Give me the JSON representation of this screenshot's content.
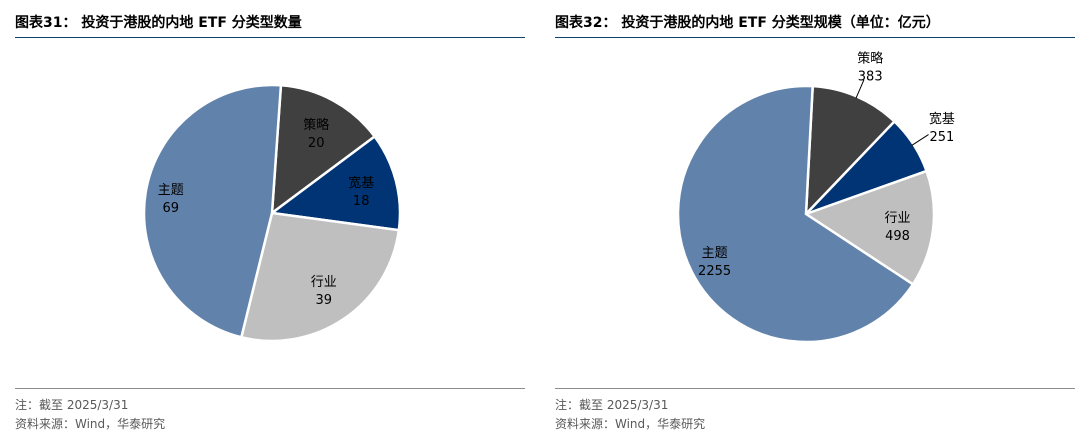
{
  "chart_data": [
    {
      "type": "pie",
      "title": "图表31： 投资于港股的内地 ETF 分类型数量",
      "note": "注：截至 2025/3/31",
      "source": "资料来源：Wind，华泰研究",
      "slices": [
        {
          "label": "策略",
          "value": 20,
          "value_text": "20",
          "color": "#404040",
          "label_color": "#000000",
          "leader": false
        },
        {
          "label": "宽基",
          "value": 18,
          "value_text": "18",
          "color": "#003474",
          "label_color": "#000000",
          "leader": false
        },
        {
          "label": "行业",
          "value": 39,
          "value_text": "39",
          "color": "#bfbfbf",
          "label_color": "#000000",
          "leader": false
        },
        {
          "label": "主题",
          "value": 69,
          "value_text": "69",
          "color": "#6182ab",
          "label_color": "#000000",
          "leader": false
        }
      ]
    },
    {
      "type": "pie",
      "title": "图表32： 投资于港股的内地 ETF 分类型规模（单位：亿元）",
      "note": "注：截至 2025/3/31",
      "source": "资料来源：Wind，华泰研究",
      "slices": [
        {
          "label": "策略",
          "value": 383,
          "value_text": "383",
          "color": "#404040",
          "label_color": "#000000",
          "leader": true
        },
        {
          "label": "宽基",
          "value": 251,
          "value_text": "251",
          "color": "#003474",
          "label_color": "#000000",
          "leader": true
        },
        {
          "label": "行业",
          "value": 498,
          "value_text": "498",
          "color": "#bfbfbf",
          "label_color": "#000000",
          "leader": false
        },
        {
          "label": "主题",
          "value": 2255,
          "value_text": "2255",
          "color": "#6182ab",
          "label_color": "#000000",
          "leader": false
        }
      ]
    }
  ]
}
